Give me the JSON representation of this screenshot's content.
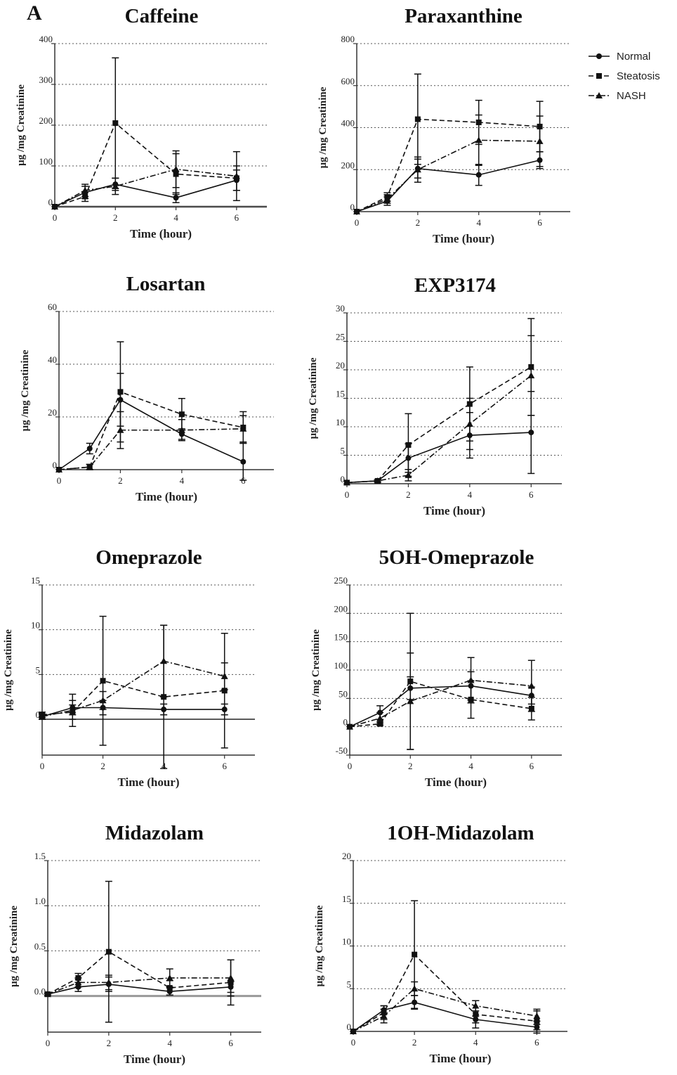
{
  "figure_label": "A",
  "legend": {
    "entries": [
      {
        "name": "Normal",
        "marker": "circle",
        "dash": "solid"
      },
      {
        "name": "Steatosis",
        "marker": "square",
        "dash": "dash"
      },
      {
        "name": "NASH",
        "marker": "triangle",
        "dash": "dashdot"
      }
    ],
    "placement": "top-right"
  },
  "chart_data": [
    {
      "type": "line",
      "title": "Caffeine",
      "xlabel": "Time (hour)",
      "ylabel": "μg /mg Creatinine",
      "x": [
        0,
        1,
        2,
        4,
        6
      ],
      "xlim": [
        0,
        7
      ],
      "ylim": [
        0,
        400
      ],
      "xticks": [
        "0",
        "2",
        "4",
        "6"
      ],
      "yticks": [
        "0",
        "100",
        "200",
        "300",
        "400"
      ],
      "grid": "horizontal-dotted",
      "series": [
        {
          "name": "Normal",
          "values": [
            0,
            35,
            55,
            22,
            65
          ],
          "errors": [
            0,
            15,
            15,
            12,
            25
          ]
        },
        {
          "name": "Steatosis",
          "values": [
            0,
            25,
            205,
            80,
            70
          ],
          "errors": [
            0,
            12,
            160,
            50,
            30
          ]
        },
        {
          "name": "NASH",
          "values": [
            0,
            40,
            50,
            92,
            75
          ],
          "errors": [
            0,
            15,
            20,
            45,
            60
          ]
        }
      ]
    },
    {
      "type": "line",
      "title": "Paraxanthine",
      "xlabel": "Time (hour)",
      "ylabel": "μg /mg Creatinine",
      "x": [
        0,
        1,
        2,
        4,
        6
      ],
      "xlim": [
        0,
        7
      ],
      "ylim": [
        0,
        800
      ],
      "xticks": [
        "0",
        "2",
        "4",
        "6"
      ],
      "yticks": [
        "0",
        "200",
        "400",
        "600",
        "800"
      ],
      "grid": "horizontal-dotted",
      "series": [
        {
          "name": "Normal",
          "values": [
            0,
            50,
            205,
            175,
            245
          ],
          "errors": [
            0,
            20,
            45,
            50,
            40
          ]
        },
        {
          "name": "Steatosis",
          "values": [
            0,
            70,
            440,
            425,
            405
          ],
          "errors": [
            0,
            20,
            215,
            105,
            120
          ]
        },
        {
          "name": "NASH",
          "values": [
            0,
            60,
            200,
            340,
            335
          ],
          "errors": [
            0,
            20,
            60,
            120,
            120
          ]
        }
      ]
    },
    {
      "type": "line",
      "title": "Losartan",
      "xlabel": "Time (hour)",
      "ylabel": "μg /mg Creatinine",
      "x": [
        0,
        1,
        2,
        4,
        6
      ],
      "xlim": [
        0,
        7
      ],
      "ylim": [
        0,
        60
      ],
      "xticks": [
        "0",
        "2",
        "4",
        "6"
      ],
      "yticks": [
        "0",
        "20",
        "40",
        "60"
      ],
      "grid": "horizontal-dotted",
      "series": [
        {
          "name": "Normal",
          "values": [
            0,
            8,
            26.5,
            13.5,
            3
          ],
          "errors": [
            0,
            2,
            10,
            2,
            7
          ]
        },
        {
          "name": "Steatosis",
          "values": [
            0,
            1,
            29.5,
            21,
            16
          ],
          "errors": [
            0,
            1,
            19,
            6,
            6
          ]
        },
        {
          "name": "NASH",
          "values": [
            0,
            1,
            15,
            15,
            15.5
          ],
          "errors": [
            0,
            1,
            7,
            4,
            5
          ]
        }
      ]
    },
    {
      "type": "line",
      "title": "EXP3174",
      "xlabel": "Time (hour)",
      "ylabel": "μg /mg Creatinine",
      "x": [
        0,
        1,
        2,
        4,
        6
      ],
      "xlim": [
        0,
        7
      ],
      "ylim": [
        0,
        30
      ],
      "xticks": [
        "0",
        "2",
        "4",
        "6"
      ],
      "yticks": [
        "0",
        "5",
        "10",
        "15",
        "20",
        "25",
        "30"
      ],
      "grid": "horizontal-dotted",
      "series": [
        {
          "name": "Normal",
          "values": [
            0.2,
            0.5,
            4.5,
            8.5,
            9
          ],
          "errors": [
            0,
            0.2,
            2.5,
            4,
            7.2
          ]
        },
        {
          "name": "Steatosis",
          "values": [
            0.2,
            0.5,
            6.8,
            14,
            20.5
          ],
          "errors": [
            0,
            0.2,
            5.5,
            6.5,
            8.5
          ]
        },
        {
          "name": "NASH",
          "values": [
            0.2,
            0.5,
            1.5,
            10.5,
            19
          ],
          "errors": [
            0,
            0.2,
            1,
            4.5,
            7
          ]
        }
      ]
    },
    {
      "type": "line",
      "title": "Omeprazole",
      "xlabel": "Time (hour)",
      "ylabel": "μg /mg Creatinine",
      "x": [
        0,
        1,
        2,
        4,
        6
      ],
      "xlim": [
        0,
        7
      ],
      "ylim": [
        -4,
        15
      ],
      "xticks": [
        "0",
        "2",
        "4",
        "6"
      ],
      "yticks": [
        "0",
        "5",
        "10",
        "15"
      ],
      "grid": "horizontal-dotted",
      "series": [
        {
          "name": "Normal",
          "values": [
            0.3,
            1.3,
            1.3,
            1.1,
            1.1
          ],
          "errors": [
            0.3,
            0.8,
            0.8,
            0.6,
            0.6
          ]
        },
        {
          "name": "Steatosis",
          "values": [
            0.5,
            0.8,
            4.3,
            2.5,
            3.2
          ],
          "errors": [
            0.3,
            0.8,
            7.2,
            8,
            6.4
          ]
        },
        {
          "name": "NASH",
          "values": [
            0.3,
            1,
            2.1,
            6.5,
            4.8
          ],
          "errors": [
            0.3,
            1.8,
            1,
            4,
            1.5
          ]
        }
      ]
    },
    {
      "type": "line",
      "title": "5OH-Omeprazole",
      "xlabel": "Time (hour)",
      "ylabel": "μg /mg Creatinine",
      "x": [
        0,
        1,
        2,
        4,
        6
      ],
      "xlim": [
        0,
        7
      ],
      "ylim": [
        -50,
        250
      ],
      "xticks": [
        "0",
        "2",
        "4",
        "6"
      ],
      "yticks": [
        "-50",
        "0",
        "50",
        "100",
        "150",
        "200",
        "250"
      ],
      "grid": "horizontal-dotted",
      "series": [
        {
          "name": "Normal",
          "values": [
            0,
            25,
            68,
            72,
            55
          ],
          "errors": [
            0,
            12,
            20,
            25,
            15
          ]
        },
        {
          "name": "Steatosis",
          "values": [
            0,
            5,
            80,
            48,
            32
          ],
          "errors": [
            0,
            3,
            120,
            33,
            20
          ]
        },
        {
          "name": "NASH",
          "values": [
            0,
            15,
            45,
            82,
            72
          ],
          "errors": [
            0,
            10,
            85,
            40,
            45
          ]
        }
      ]
    },
    {
      "type": "line",
      "title": "Midazolam",
      "xlabel": "Time (hour)",
      "ylabel": "μg /mg Creatinine",
      "x": [
        0,
        1,
        2,
        4,
        6
      ],
      "xlim": [
        0,
        7
      ],
      "ylim": [
        -0.4,
        1.5
      ],
      "xticks": [
        "0",
        "2",
        "4",
        "6"
      ],
      "yticks": [
        "0.0",
        "0.5",
        "1.0",
        "1.5"
      ],
      "grid": "horizontal-dotted",
      "series": [
        {
          "name": "Normal",
          "values": [
            0.02,
            0.1,
            0.13,
            0.05,
            0.1
          ],
          "errors": [
            0.01,
            0.05,
            0.08,
            0.04,
            0.06
          ]
        },
        {
          "name": "Steatosis",
          "values": [
            0.02,
            0.2,
            0.49,
            0.09,
            0.15
          ],
          "errors": [
            0.01,
            0.05,
            0.78,
            0.08,
            0.25
          ]
        },
        {
          "name": "NASH",
          "values": [
            0.02,
            0.15,
            0.15,
            0.2,
            0.2
          ],
          "errors": [
            0.01,
            0.05,
            0.08,
            0.1,
            0.2
          ]
        }
      ]
    },
    {
      "type": "line",
      "title": "1OH-Midazolam",
      "xlabel": "Time (hour)",
      "ylabel": "μg /mg Creatinine",
      "x": [
        0,
        1,
        2,
        4,
        6
      ],
      "xlim": [
        0,
        7
      ],
      "ylim": [
        0,
        20
      ],
      "xticks": [
        "0",
        "2",
        "4",
        "6"
      ],
      "yticks": [
        "0",
        "5",
        "10",
        "15",
        "20"
      ],
      "grid": "horizontal-dotted",
      "series": [
        {
          "name": "Normal",
          "values": [
            0,
            2.5,
            3.4,
            1.4,
            0.5
          ],
          "errors": [
            0,
            0.5,
            0.8,
            0.4,
            0.3
          ]
        },
        {
          "name": "Steatosis",
          "values": [
            0,
            2.2,
            9,
            2,
            1.2
          ],
          "errors": [
            0,
            0.8,
            6.3,
            1.6,
            1.4
          ]
        },
        {
          "name": "NASH",
          "values": [
            0,
            1.8,
            5,
            3,
            1.8
          ],
          "errors": [
            0,
            0.8,
            0.8,
            0.6,
            0.6
          ]
        }
      ]
    }
  ]
}
